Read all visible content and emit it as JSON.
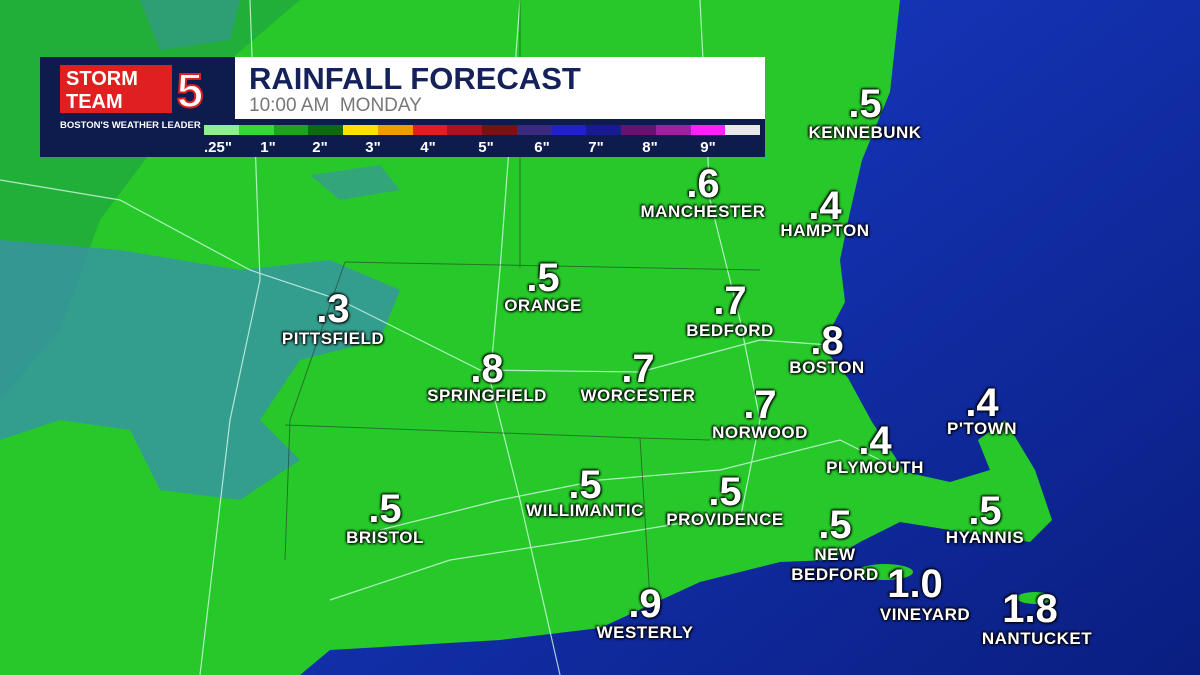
{
  "header": {
    "logo": {
      "line1": "STORM",
      "line2": "TEAM",
      "number": "5",
      "tagline": "BOSTON'S WEATHER LEADER"
    },
    "title": "RAINFALL FORECAST",
    "subtitle": "10:00 AM  MONDAY"
  },
  "legend": {
    "labels": [
      ".25\"",
      "1\"",
      "2\"",
      "3\"",
      "4\"",
      "5\"",
      "6\"",
      "7\"",
      "8\"",
      "9\""
    ]
  },
  "cities": [
    {
      "value": ".5",
      "label": "KENNEBUNK"
    },
    {
      "value": ".6",
      "label": "MANCHESTER"
    },
    {
      "value": ".4",
      "label": "HAMPTON"
    },
    {
      "value": ".5",
      "label": "ORANGE"
    },
    {
      "value": ".3",
      "label": "PITTSFIELD"
    },
    {
      "value": ".7",
      "label": "BEDFORD"
    },
    {
      "value": ".8",
      "label": "BOSTON"
    },
    {
      "value": ".8",
      "label": "SPRINGFIELD"
    },
    {
      "value": ".7",
      "label": "WORCESTER"
    },
    {
      "value": ".7",
      "label": "NORWOOD"
    },
    {
      "value": ".4",
      "label": "P'TOWN"
    },
    {
      "value": ".4",
      "label": "PLYMOUTH"
    },
    {
      "value": ".5",
      "label": "BRISTOL"
    },
    {
      "value": ".5",
      "label": "WILLIMANTIC"
    },
    {
      "value": ".5",
      "label": "PROVIDENCE"
    },
    {
      "value": ".5",
      "label": "HYANNIS"
    },
    {
      "value": ".5",
      "label": "NEW BEDFORD"
    },
    {
      "value": "1.0",
      "label": "VINEYARD"
    },
    {
      "value": ".9",
      "label": "WESTERLY"
    },
    {
      "value": "1.8",
      "label": "NANTUCKET"
    }
  ]
}
